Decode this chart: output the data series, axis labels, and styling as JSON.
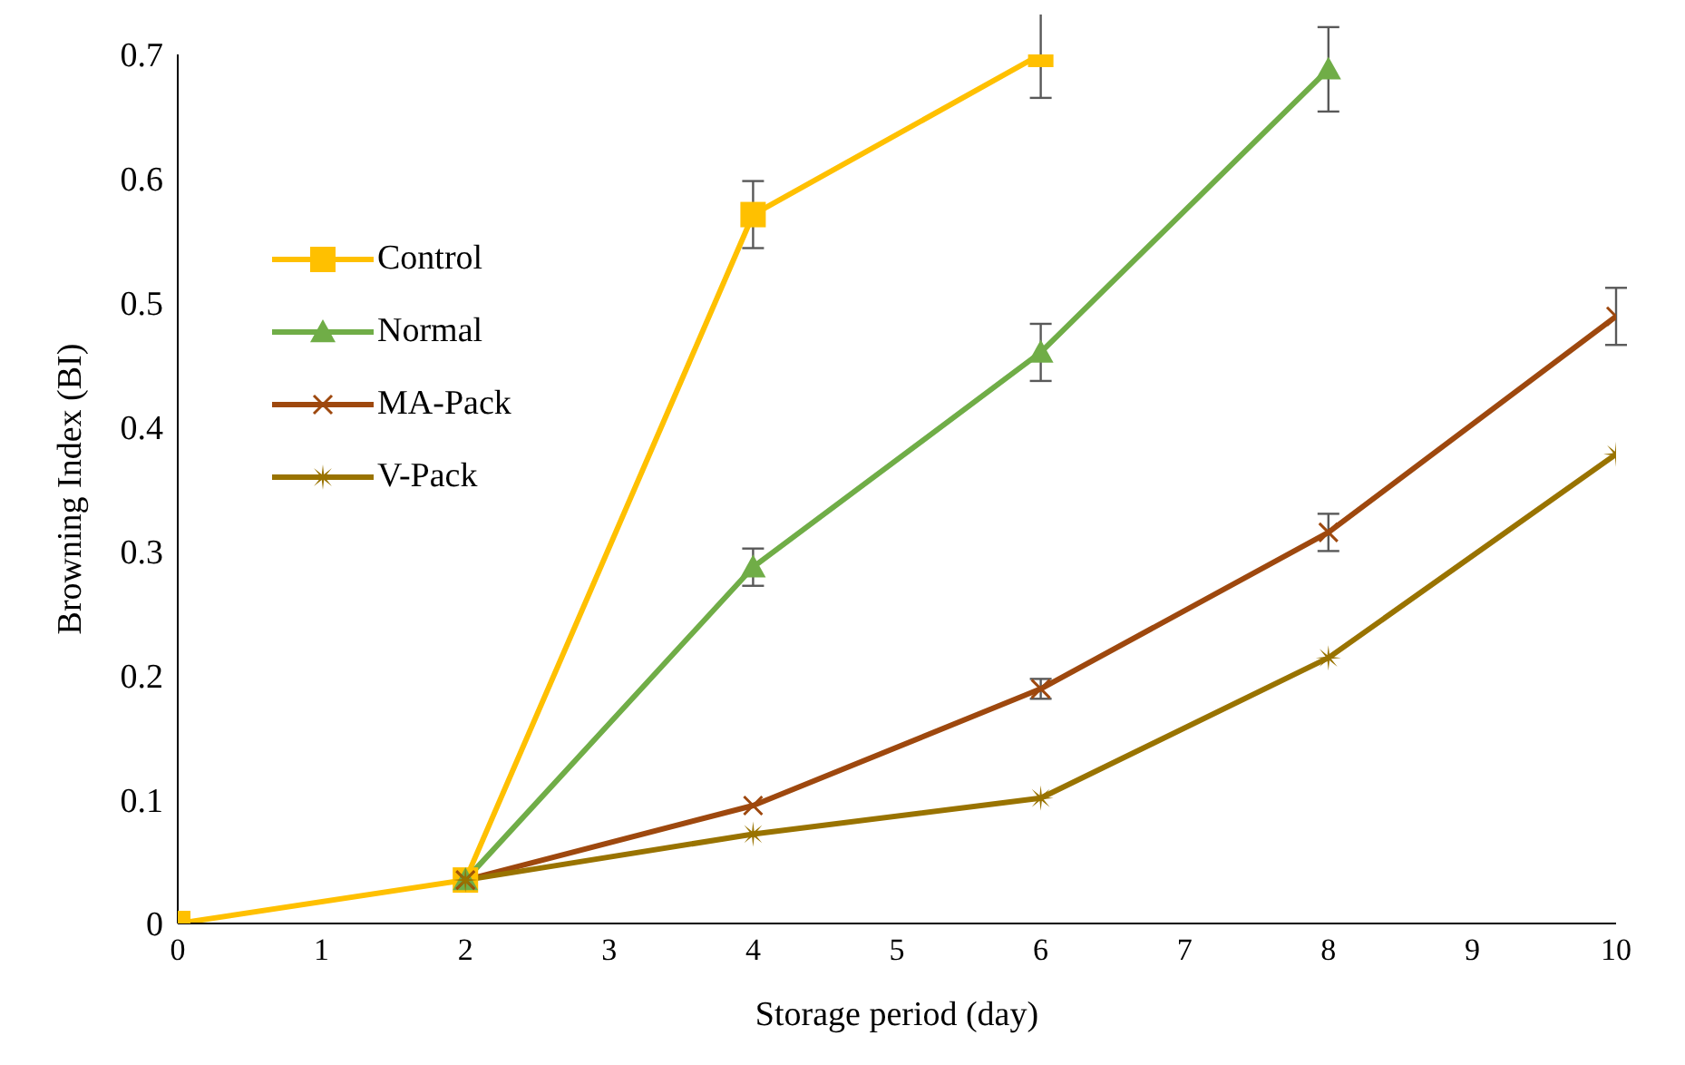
{
  "chart_data": {
    "type": "line",
    "xlabel": "Storage period (day)",
    "ylabel": "Browning Index (BI)",
    "x": [
      0,
      2,
      4,
      6,
      8,
      10
    ],
    "xlim": [
      0,
      10
    ],
    "xticks": [
      0,
      1,
      2,
      3,
      4,
      5,
      6,
      7,
      8,
      9,
      10
    ],
    "ylim": [
      0,
      0.7
    ],
    "yticks": [
      0,
      0.1,
      0.2,
      0.3,
      0.4,
      0.5,
      0.6,
      0.7
    ],
    "grid": false,
    "legend": "top left",
    "series": [
      {
        "name": "Control",
        "color": "#ffc000",
        "marker": "square",
        "values": [
          0,
          0.035,
          0.571,
          0.7,
          null,
          null
        ],
        "errors": [
          null,
          null,
          0.027,
          0.035,
          null,
          null
        ]
      },
      {
        "name": "Normal",
        "color": "#70ad47",
        "marker": "triangle",
        "values": [
          null,
          0.035,
          0.287,
          0.46,
          0.688,
          null
        ],
        "errors": [
          null,
          null,
          0.015,
          0.023,
          0.034,
          null
        ]
      },
      {
        "name": "MA-Pack",
        "color": "#9e480e",
        "marker": "cross",
        "values": [
          null,
          0.035,
          0.095,
          0.189,
          0.315,
          0.489
        ],
        "errors": [
          null,
          null,
          null,
          0.008,
          0.015,
          0.023
        ]
      },
      {
        "name": "V-Pack",
        "color": "#997300",
        "marker": "star",
        "values": [
          null,
          0.035,
          0.072,
          0.101,
          0.214,
          0.378
        ],
        "errors": [
          null,
          null,
          null,
          null,
          null,
          null
        ]
      }
    ]
  }
}
